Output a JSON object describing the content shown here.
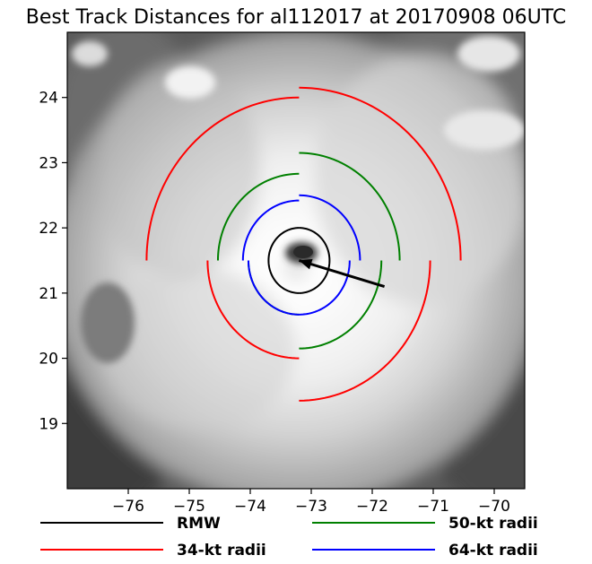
{
  "chart_data": {
    "type": "scatter",
    "title": "Best Track Distances for al112017 at 20170908 06UTC",
    "xlabel": "",
    "ylabel": "",
    "xlim": [
      -77.0,
      -69.5
    ],
    "ylim": [
      18.0,
      25.0
    ],
    "xticks": [
      -76,
      -75,
      -74,
      -73,
      -72,
      -71,
      -70
    ],
    "xtick_labels": [
      "−76",
      "−75",
      "−74",
      "−73",
      "−72",
      "−71",
      "−70"
    ],
    "yticks": [
      19,
      20,
      21,
      22,
      23,
      24
    ],
    "ytick_labels": [
      "19",
      "20",
      "21",
      "22",
      "23",
      "24"
    ],
    "grid": false,
    "legend_position": "bottom",
    "background": "grayscale satellite image of hurricane",
    "center": {
      "lon": -73.2,
      "lat": 21.5
    },
    "motion_arrow": {
      "from": {
        "lon": -71.8,
        "lat": 21.1
      },
      "to": {
        "lon": -73.2,
        "lat": 21.5
      }
    },
    "rmw_deg": 0.5,
    "series": [
      {
        "name": "RMW",
        "color": "#000000",
        "radii_deg": {
          "NE": 0.5,
          "SE": 0.5,
          "SW": 0.5,
          "NW": 0.5
        }
      },
      {
        "name": "34-kt radii",
        "color": "#ff0000",
        "radii_deg": {
          "NE": 2.65,
          "SE": 2.15,
          "SW": 1.5,
          "NW": 2.5
        }
      },
      {
        "name": "50-kt radii",
        "color": "#008000",
        "radii_deg": {
          "NE": 1.65,
          "SE": 1.35,
          "SW": 0.83,
          "NW": 1.33
        }
      },
      {
        "name": "64-kt radii",
        "color": "#0000ff",
        "radii_deg": {
          "NE": 1.0,
          "SE": 0.83,
          "SW": 0.83,
          "NW": 0.92
        }
      }
    ],
    "legend": [
      "RMW",
      "50-kt radii",
      "34-kt radii",
      "64-kt radii"
    ]
  }
}
